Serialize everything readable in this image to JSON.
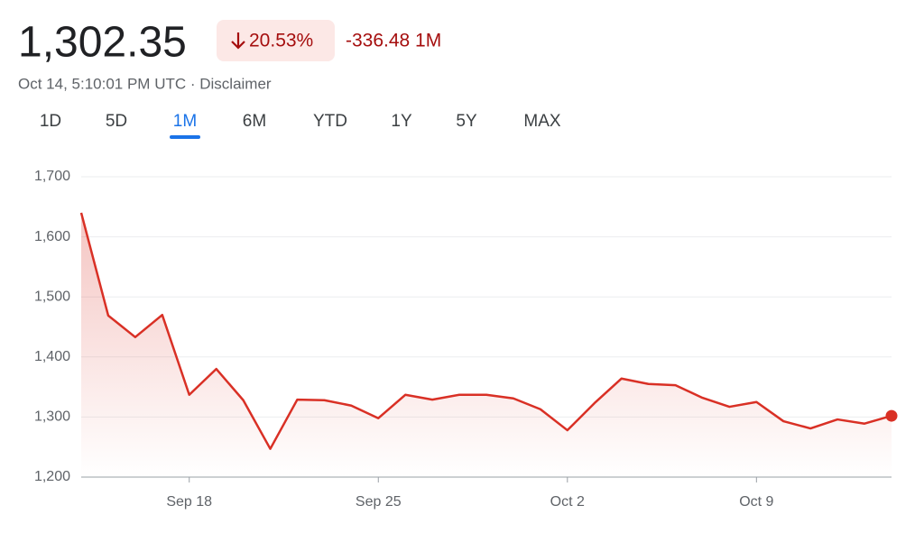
{
  "header": {
    "price": "1,302.35",
    "change_percent": "20.53%",
    "change_value": "-336.48 1M",
    "timestamp": "Oct 14, 5:10:01 PM UTC · Disclaimer"
  },
  "tabs": {
    "items": [
      "1D",
      "5D",
      "1M",
      "6M",
      "YTD",
      "1Y",
      "5Y",
      "MAX"
    ],
    "selected_index": 2
  },
  "chart_data": {
    "type": "line",
    "color": "#d93025",
    "grid": true,
    "categories": [
      null,
      null,
      null,
      null,
      "Sep 18",
      null,
      null,
      null,
      null,
      null,
      null,
      "Sep 25",
      null,
      null,
      null,
      null,
      null,
      null,
      "Oct 2",
      null,
      null,
      null,
      null,
      null,
      null,
      "Oct 9",
      null,
      null,
      null,
      null,
      null
    ],
    "values": [
      1640,
      1469,
      1433,
      1470,
      1337,
      1380,
      1328,
      1247,
      1329,
      1328,
      1319,
      1298,
      1337,
      1329,
      1337,
      1337,
      1331,
      1313,
      1278,
      1323,
      1364,
      1355,
      1353,
      1332,
      1317,
      1325,
      1293,
      1281,
      1296,
      1289,
      1302
    ],
    "ylim": [
      1200,
      1700
    ],
    "yticks": [
      {
        "value": 1200,
        "label": "1,200"
      },
      {
        "value": 1300,
        "label": "1,300"
      },
      {
        "value": 1400,
        "label": "1,400"
      },
      {
        "value": 1500,
        "label": "1,500"
      },
      {
        "value": 1600,
        "label": "1,600"
      },
      {
        "value": 1700,
        "label": "1,700"
      }
    ]
  }
}
